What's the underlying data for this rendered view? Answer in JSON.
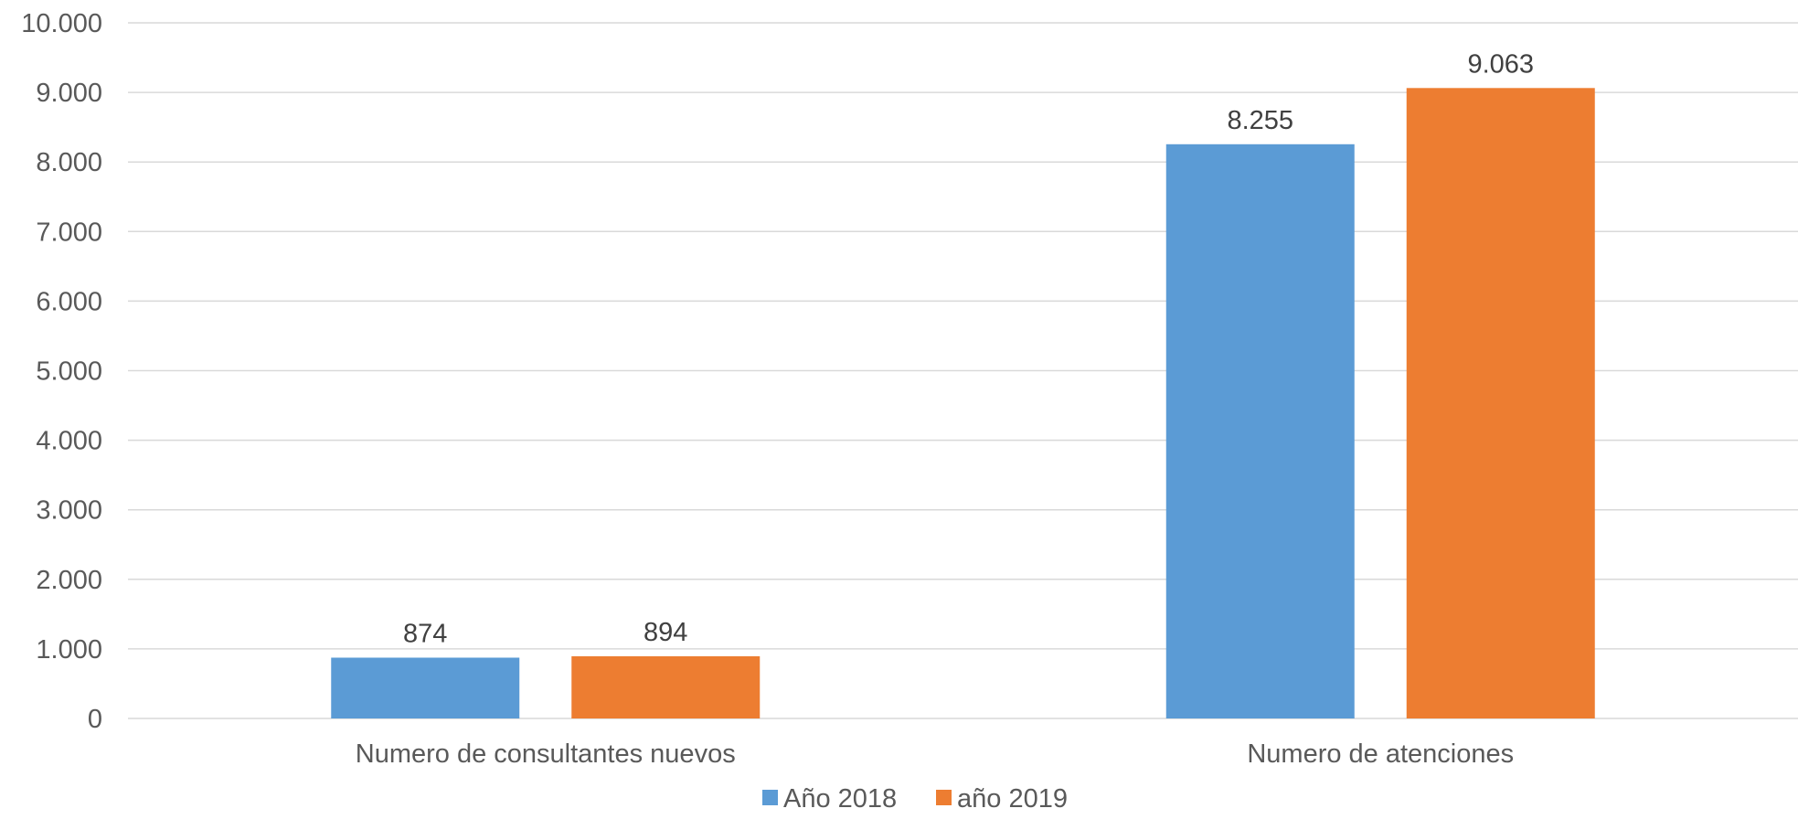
{
  "chart_data": {
    "type": "bar",
    "categories": [
      "Numero de consultantes nuevos",
      "Numero de atenciones"
    ],
    "series": [
      {
        "name": "Año 2018",
        "values": [
          874,
          8255
        ],
        "labels": [
          "874",
          "8.255"
        ],
        "color": "#5b9bd5"
      },
      {
        "name": "año 2019",
        "values": [
          894,
          9063
        ],
        "labels": [
          "894",
          "9.063"
        ],
        "color": "#ed7d31"
      }
    ],
    "ylim": [
      0,
      10000
    ],
    "yticks": [
      0,
      1000,
      2000,
      3000,
      4000,
      5000,
      6000,
      7000,
      8000,
      9000,
      10000
    ],
    "ytick_labels": [
      "0",
      "1.000",
      "2.000",
      "3.000",
      "4.000",
      "5.000",
      "6.000",
      "7.000",
      "8.000",
      "9.000",
      "10.000"
    ],
    "grid": true,
    "legend_position": "bottom",
    "title": "",
    "xlabel": "",
    "ylabel": ""
  }
}
